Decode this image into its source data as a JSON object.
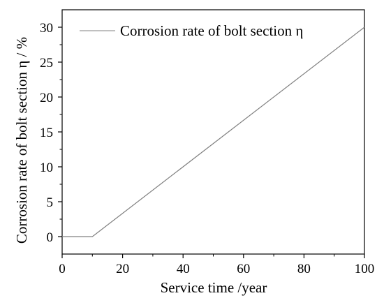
{
  "chart_data": {
    "type": "line",
    "xlabel": "Service time /year",
    "ylabel": "Corrosion rate of bolt section η / %",
    "xlim": [
      0,
      100
    ],
    "ylim": [
      -2.5,
      32.5
    ],
    "x_ticks": [
      0,
      20,
      40,
      60,
      80,
      100
    ],
    "y_ticks": [
      0,
      5,
      10,
      15,
      20,
      25,
      30
    ],
    "x_minor_ticks": [
      10,
      30,
      50,
      70,
      90
    ],
    "y_minor_ticks": [
      2.5,
      7.5,
      12.5,
      17.5,
      22.5,
      27.5
    ],
    "grid": false,
    "legend_position": "top-left",
    "series": [
      {
        "name": "Corrosion rate of bolt section η",
        "color": "#808080",
        "x": [
          0,
          10,
          100
        ],
        "y": [
          0,
          0,
          30
        ]
      }
    ]
  }
}
